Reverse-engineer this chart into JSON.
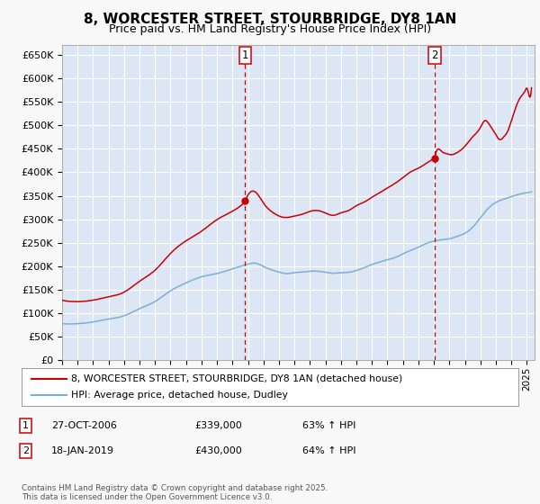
{
  "title": "8, WORCESTER STREET, STOURBRIDGE, DY8 1AN",
  "subtitle": "Price paid vs. HM Land Registry's House Price Index (HPI)",
  "title_fontsize": 11,
  "subtitle_fontsize": 9,
  "ylabel_ticks": [
    "£0",
    "£50K",
    "£100K",
    "£150K",
    "£200K",
    "£250K",
    "£300K",
    "£350K",
    "£400K",
    "£450K",
    "£500K",
    "£550K",
    "£600K",
    "£650K"
  ],
  "ytick_values": [
    0,
    50000,
    100000,
    150000,
    200000,
    250000,
    300000,
    350000,
    400000,
    450000,
    500000,
    550000,
    600000,
    650000
  ],
  "ylim": [
    0,
    670000
  ],
  "fig_bg": "#f8f8f8",
  "plot_bg": "#dce6f5",
  "grid_color": "#ffffff",
  "red_color": "#cc0000",
  "blue_color": "#7bafd4",
  "sale1_date": "27-OCT-2006",
  "sale1_price": 339000,
  "sale1_hpi": "63% ↑ HPI",
  "sale1_year": 2006.82,
  "sale2_date": "18-JAN-2019",
  "sale2_price": 430000,
  "sale2_hpi": "64% ↑ HPI",
  "sale2_year": 2019.05,
  "legend_label_red": "8, WORCESTER STREET, STOURBRIDGE, DY8 1AN (detached house)",
  "legend_label_blue": "HPI: Average price, detached house, Dudley",
  "footer": "Contains HM Land Registry data © Crown copyright and database right 2025.\nThis data is licensed under the Open Government Licence v3.0.",
  "xmin": 1995.0,
  "xmax": 2025.5,
  "blue_keypoints": [
    [
      1995.0,
      78000
    ],
    [
      1996.0,
      78000
    ],
    [
      1997.0,
      82000
    ],
    [
      1998.0,
      88000
    ],
    [
      1999.0,
      95000
    ],
    [
      2000.0,
      110000
    ],
    [
      2001.0,
      125000
    ],
    [
      2002.0,
      148000
    ],
    [
      2003.0,
      165000
    ],
    [
      2004.0,
      178000
    ],
    [
      2005.0,
      185000
    ],
    [
      2006.0,
      195000
    ],
    [
      2007.0,
      205000
    ],
    [
      2007.5,
      207000
    ],
    [
      2008.0,
      200000
    ],
    [
      2008.5,
      193000
    ],
    [
      2009.0,
      188000
    ],
    [
      2009.5,
      185000
    ],
    [
      2010.0,
      187000
    ],
    [
      2010.5,
      188000
    ],
    [
      2011.0,
      190000
    ],
    [
      2011.5,
      190000
    ],
    [
      2012.0,
      188000
    ],
    [
      2012.5,
      186000
    ],
    [
      2013.0,
      187000
    ],
    [
      2013.5,
      188000
    ],
    [
      2014.0,
      192000
    ],
    [
      2014.5,
      198000
    ],
    [
      2015.0,
      205000
    ],
    [
      2015.5,
      210000
    ],
    [
      2016.0,
      215000
    ],
    [
      2016.5,
      220000
    ],
    [
      2017.0,
      228000
    ],
    [
      2017.5,
      235000
    ],
    [
      2018.0,
      242000
    ],
    [
      2018.5,
      250000
    ],
    [
      2019.0,
      255000
    ],
    [
      2019.5,
      258000
    ],
    [
      2020.0,
      260000
    ],
    [
      2020.5,
      265000
    ],
    [
      2021.0,
      272000
    ],
    [
      2021.5,
      285000
    ],
    [
      2022.0,
      305000
    ],
    [
      2022.5,
      325000
    ],
    [
      2023.0,
      338000
    ],
    [
      2023.5,
      345000
    ],
    [
      2024.0,
      350000
    ],
    [
      2024.5,
      355000
    ],
    [
      2025.0,
      358000
    ],
    [
      2025.3,
      360000
    ]
  ],
  "red_keypoints_pre": [
    [
      1995.0,
      128000
    ],
    [
      1996.0,
      125000
    ],
    [
      1997.0,
      128000
    ],
    [
      1998.0,
      135000
    ],
    [
      1999.0,
      145000
    ],
    [
      2000.0,
      168000
    ],
    [
      2001.0,
      192000
    ],
    [
      2002.0,
      228000
    ],
    [
      2003.0,
      255000
    ],
    [
      2004.0,
      275000
    ],
    [
      2005.0,
      300000
    ],
    [
      2006.0,
      318000
    ],
    [
      2006.82,
      339000
    ]
  ],
  "red_keypoints_mid": [
    [
      2006.82,
      339000
    ],
    [
      2007.2,
      360000
    ],
    [
      2007.6,
      355000
    ],
    [
      2008.0,
      335000
    ],
    [
      2008.5,
      318000
    ],
    [
      2009.0,
      308000
    ],
    [
      2009.5,
      305000
    ],
    [
      2010.0,
      308000
    ],
    [
      2010.5,
      312000
    ],
    [
      2011.0,
      318000
    ],
    [
      2011.5,
      320000
    ],
    [
      2012.0,
      315000
    ],
    [
      2012.5,
      310000
    ],
    [
      2013.0,
      315000
    ],
    [
      2013.5,
      320000
    ],
    [
      2014.0,
      330000
    ],
    [
      2014.5,
      338000
    ],
    [
      2015.0,
      348000
    ],
    [
      2015.5,
      358000
    ],
    [
      2016.0,
      368000
    ],
    [
      2016.5,
      378000
    ],
    [
      2017.0,
      390000
    ],
    [
      2017.5,
      402000
    ],
    [
      2018.0,
      410000
    ],
    [
      2018.5,
      420000
    ],
    [
      2019.05,
      430000
    ]
  ],
  "red_keypoints_post": [
    [
      2019.05,
      430000
    ],
    [
      2019.2,
      448000
    ],
    [
      2019.5,
      445000
    ],
    [
      2019.8,
      440000
    ],
    [
      2020.0,
      438000
    ],
    [
      2020.5,
      442000
    ],
    [
      2021.0,
      455000
    ],
    [
      2021.5,
      475000
    ],
    [
      2022.0,
      495000
    ],
    [
      2022.3,
      510000
    ],
    [
      2022.5,
      505000
    ],
    [
      2022.8,
      490000
    ],
    [
      2023.0,
      480000
    ],
    [
      2023.2,
      470000
    ],
    [
      2023.5,
      475000
    ],
    [
      2023.8,
      490000
    ],
    [
      2024.0,
      510000
    ],
    [
      2024.2,
      530000
    ],
    [
      2024.5,
      555000
    ],
    [
      2024.7,
      565000
    ],
    [
      2024.9,
      575000
    ],
    [
      2025.0,
      580000
    ],
    [
      2025.1,
      570000
    ],
    [
      2025.2,
      560000
    ],
    [
      2025.3,
      580000
    ]
  ]
}
